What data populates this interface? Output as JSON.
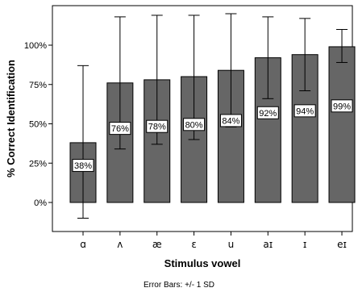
{
  "chart_data": {
    "type": "bar",
    "categories": [
      "ɑ",
      "ʌ",
      "æ",
      "ɛ",
      "u",
      "aɪ",
      "ɪ",
      "eɪ"
    ],
    "values": [
      38,
      76,
      78,
      80,
      84,
      92,
      94,
      99
    ],
    "data_labels": [
      "38%",
      "76%",
      "78%",
      "80%",
      "84%",
      "92%",
      "94%",
      "99%"
    ],
    "error_low": [
      -10,
      34,
      37,
      40,
      48,
      66,
      71,
      89
    ],
    "error_high": [
      87,
      118,
      119,
      119,
      120,
      118,
      117,
      110
    ],
    "xlabel": "Stimulus vowel",
    "ylabel": "% Correct Identification",
    "ylim": [
      -18,
      125
    ],
    "yticks": [
      0,
      25,
      50,
      75,
      100
    ],
    "ytick_labels": [
      "0%",
      "25%",
      "50%",
      "75%",
      "100%"
    ],
    "grid": false,
    "footnote": "Error Bars: +/- 1 SD",
    "colors": {
      "bar": "#666666",
      "bar_edge": "#000000",
      "frame": "#000000"
    }
  }
}
